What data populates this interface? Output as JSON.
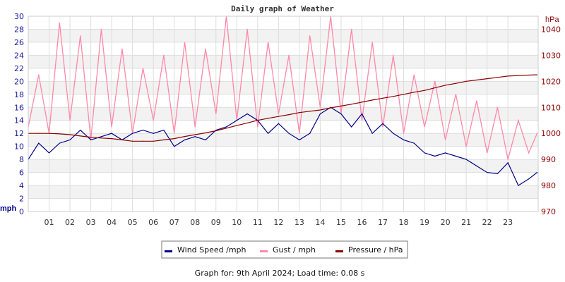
{
  "chart_data": {
    "type": "line",
    "title": "Daily graph of Weather",
    "xlabel": "",
    "ylabel": "mph",
    "y2label": "hPa",
    "ylim": [
      0,
      30
    ],
    "y2lim": [
      970,
      1045
    ],
    "xlim": [
      0,
      24.45
    ],
    "yticks": [
      "0",
      "2",
      "4",
      "6",
      "8",
      "10",
      "12",
      "14",
      "16",
      "18",
      "20",
      "22",
      "24",
      "26",
      "28",
      "30"
    ],
    "y2ticks": [
      "970",
      "980",
      "990",
      "1000",
      "1010",
      "1020",
      "1030",
      "1040"
    ],
    "xticks": [
      "01",
      "02",
      "03",
      "04",
      "05",
      "06",
      "07",
      "08",
      "09",
      "10",
      "11",
      "12",
      "13",
      "14",
      "15",
      "16",
      "17",
      "18",
      "19",
      "20",
      "21",
      "22",
      "23"
    ],
    "grid": true,
    "legend_position": "bottom",
    "x": [
      0,
      0.5,
      1,
      1.5,
      2,
      2.5,
      3,
      3.5,
      4,
      4.5,
      5,
      5.5,
      6,
      6.5,
      7,
      7.5,
      8,
      8.5,
      9,
      9.5,
      10,
      10.5,
      11,
      11.5,
      12,
      12.5,
      13,
      13.5,
      14,
      14.5,
      15,
      15.5,
      16,
      16.5,
      17,
      17.5,
      18,
      18.5,
      19,
      19.5,
      20,
      20.5,
      21,
      21.5,
      22,
      22.5,
      23,
      23.5,
      24,
      24.4
    ],
    "series": [
      {
        "name": "Wind Speed /mph",
        "color": "#00008b",
        "axis": "left",
        "values": [
          8,
          10.5,
          9,
          10.5,
          11,
          12.5,
          11,
          11.5,
          12,
          11,
          12,
          12.5,
          12,
          12.5,
          10,
          11,
          11.5,
          11,
          12.5,
          13,
          14,
          15,
          14,
          12,
          13.5,
          12,
          11,
          12,
          15,
          16,
          15,
          13,
          15,
          12,
          13.5,
          12,
          11,
          10.5,
          9,
          8.5,
          9,
          8.5,
          8,
          7,
          6,
          5.8,
          7.5,
          4,
          5,
          6
        ]
      },
      {
        "name": "Gust / mph",
        "color": "#ff88aa",
        "axis": "left",
        "values": [
          13,
          21,
          12,
          29,
          14,
          27,
          11,
          28,
          13,
          25,
          12,
          22,
          14,
          24,
          12,
          26,
          13,
          25,
          15,
          30,
          14,
          28,
          13,
          26,
          15,
          24,
          12,
          27,
          16,
          30,
          15,
          28,
          14,
          26,
          13,
          24,
          12,
          21,
          13,
          20,
          11,
          18,
          10,
          17,
          9,
          16,
          8,
          14,
          9,
          12
        ]
      },
      {
        "name": "Pressure / hPa",
        "color": "#8b0000",
        "axis": "right",
        "values": [
          1000,
          1000,
          1000,
          999.8,
          999.5,
          999,
          998.5,
          998.2,
          998,
          997.5,
          997,
          997,
          997,
          997.5,
          998,
          998.8,
          999.5,
          1000.2,
          1001,
          1002,
          1003,
          1004,
          1005,
          1005.8,
          1006.5,
          1007.2,
          1008,
          1008.5,
          1009,
          1009.8,
          1010.5,
          1011.2,
          1012,
          1012.8,
          1013.5,
          1014.2,
          1015,
          1015.8,
          1016.5,
          1017.5,
          1018.5,
          1019.2,
          1020,
          1020.5,
          1021,
          1021.5,
          1022,
          1022.2,
          1022.4,
          1022.5
        ]
      }
    ],
    "footer": "Graph for: 9th April 2024; Load time: 0.08 s"
  }
}
